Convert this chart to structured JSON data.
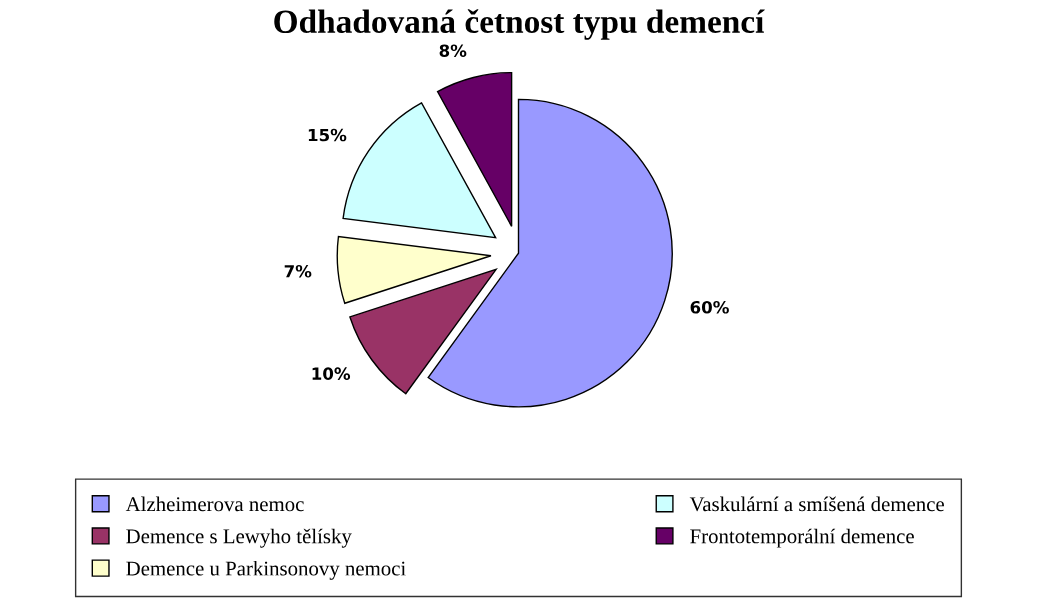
{
  "chart_data": {
    "type": "pie",
    "title": "Odhadovaná četnost typu demencí",
    "categories": [
      "Alzheimerova nemoc",
      "Demence s Lewyho tělísky",
      "Demence u Parkinsonovy nemoci",
      "Vaskulární a smíšená demence",
      "Frontotemporální demence"
    ],
    "values": [
      60,
      10,
      7,
      15,
      8
    ],
    "colors": [
      "#9999ff",
      "#993366",
      "#ffffcc",
      "#ccffff",
      "#660066"
    ],
    "value_labels": [
      "60%",
      "10%",
      "7%",
      "15%",
      "8%"
    ],
    "legend": "bottom"
  }
}
